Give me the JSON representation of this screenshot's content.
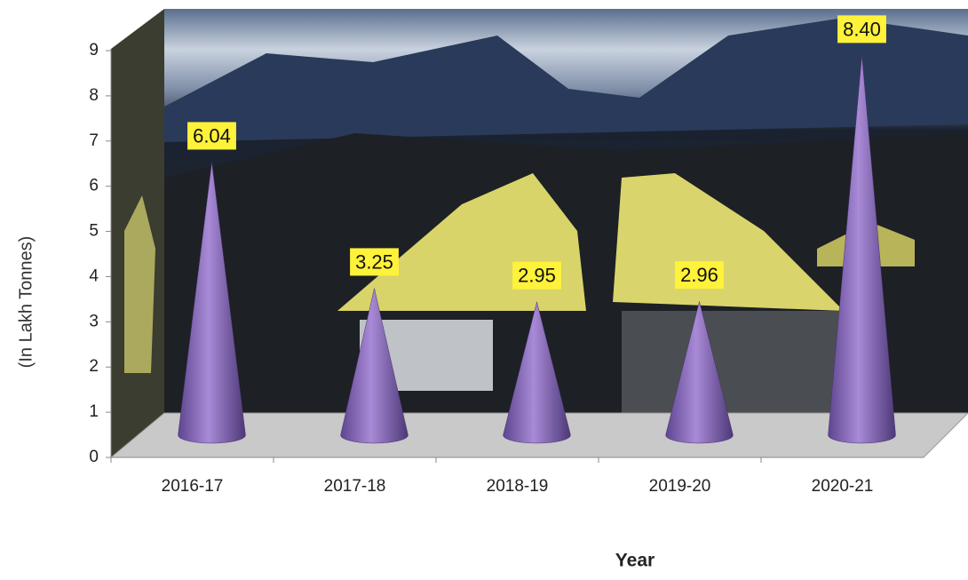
{
  "chart_data": {
    "type": "cone",
    "x_label": "Year",
    "y_label": "(In Lakh Tonnes)",
    "categories": [
      "2016-17",
      "2017-18",
      "2018-19",
      "2019-20",
      "2020-21"
    ],
    "values": [
      6.04,
      3.25,
      2.95,
      2.96,
      8.4
    ],
    "value_labels": [
      "6.04",
      "3.25",
      "2.95",
      "2.96",
      "8.40"
    ],
    "color": "#8a6cb8",
    "ylim": [
      0,
      9
    ],
    "yticks": [
      0,
      1,
      2,
      3,
      4,
      5,
      6,
      7,
      8,
      9
    ]
  }
}
